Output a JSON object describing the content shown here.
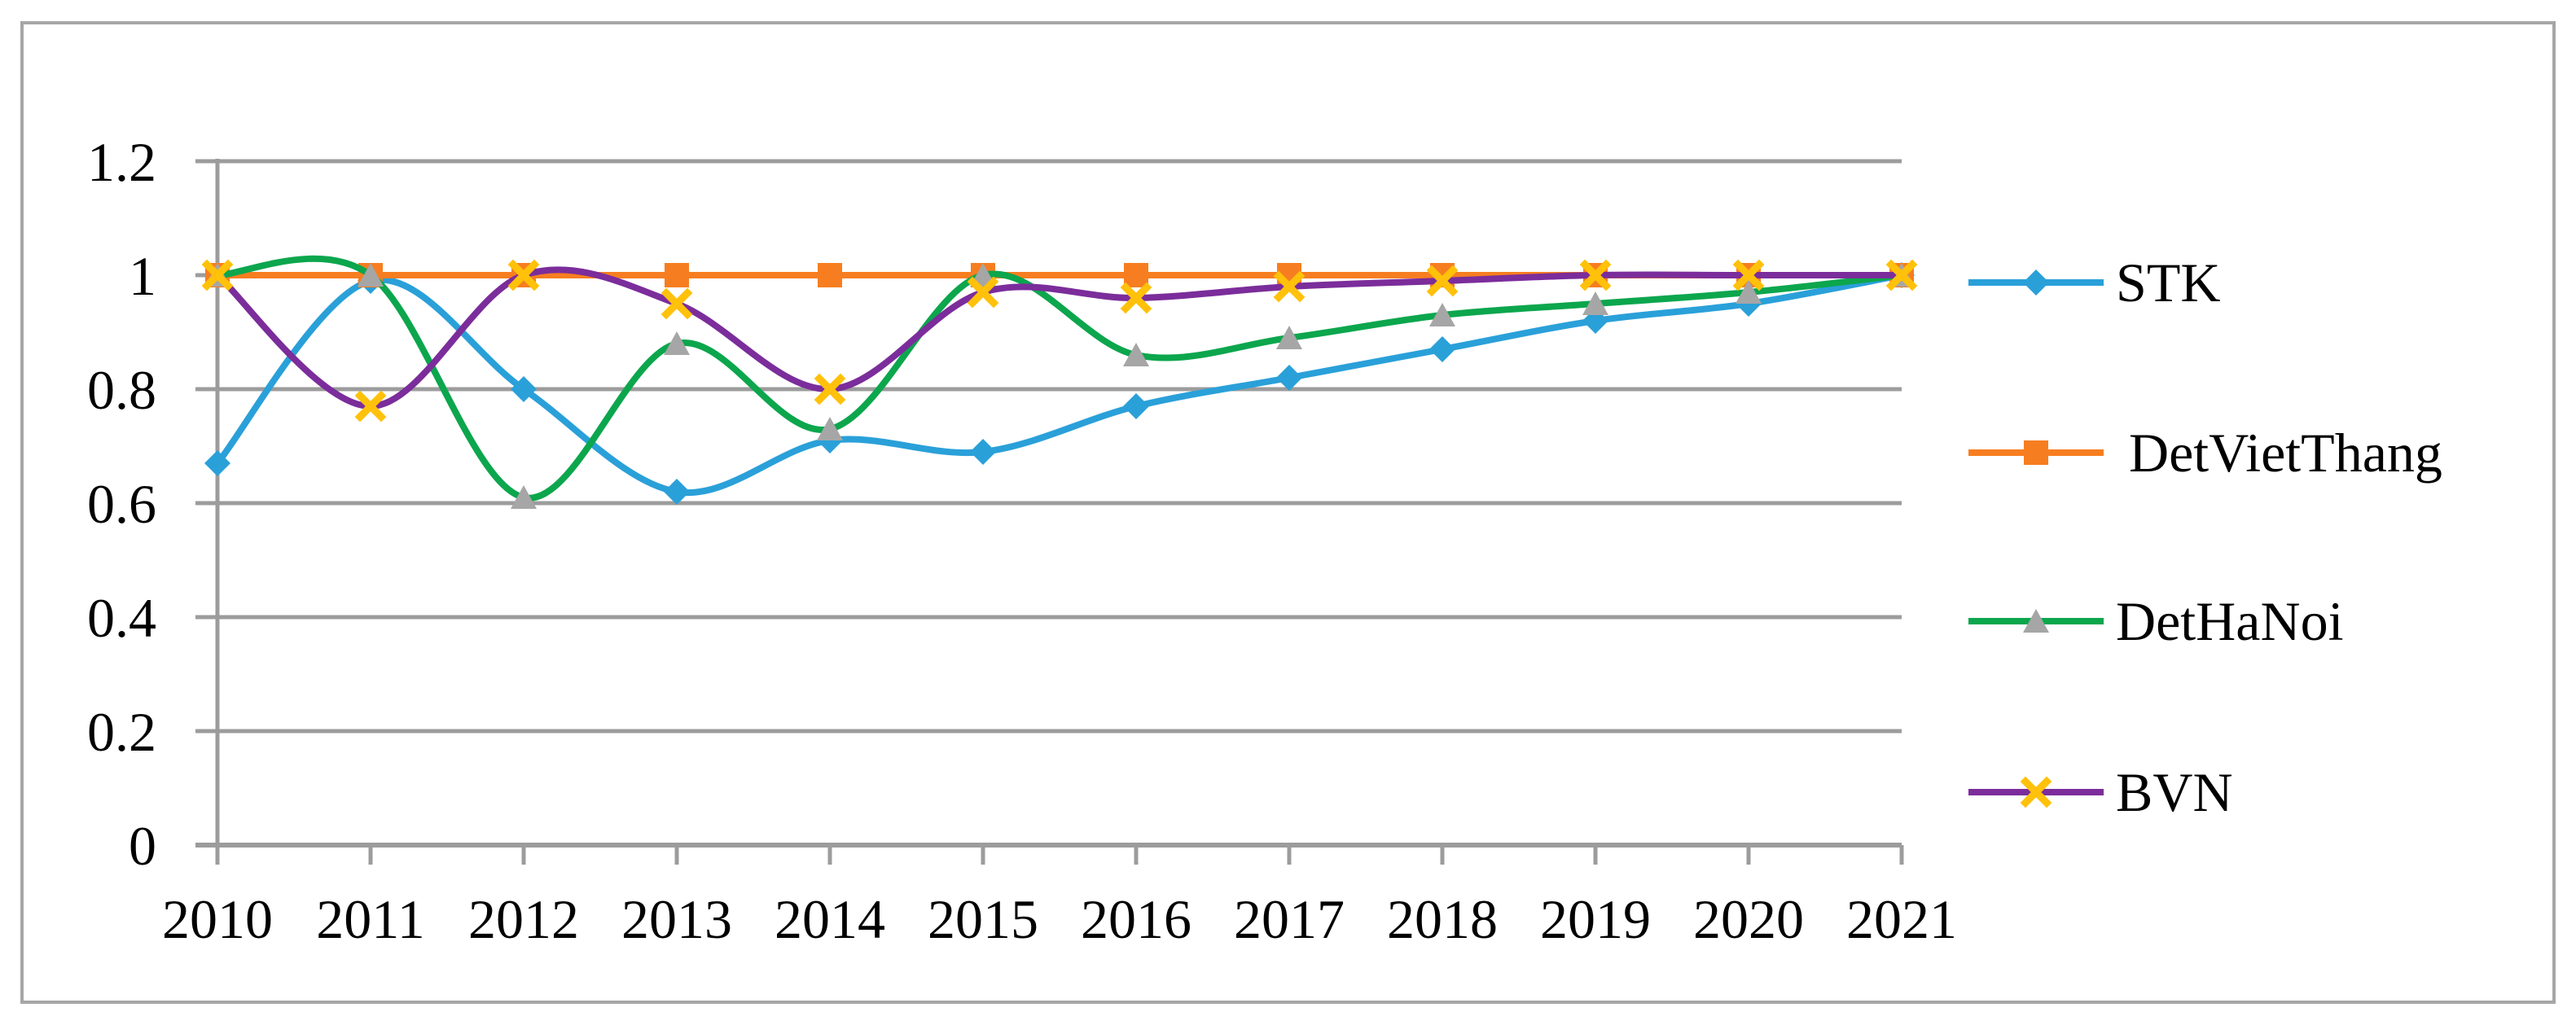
{
  "figure": {
    "background": "#FFFFFF",
    "border_color": "#A6A6A6"
  },
  "axes": {
    "grid_color": "#9C9C9C",
    "axis_color": "#909090",
    "label_color": "#000000",
    "y_ticks": [
      "1.2",
      "1",
      "0.8",
      "0.6",
      "0.4",
      "0.2",
      "0"
    ],
    "y_values": [
      1.2,
      1.0,
      0.8,
      0.6,
      0.4,
      0.2,
      0
    ],
    "x_ticks": [
      "2010",
      "2011",
      "2012",
      "2013",
      "2014",
      "2015",
      "2016",
      "2017",
      "2018",
      "2019",
      "2020",
      "2021"
    ]
  },
  "legend": {
    "items": [
      {
        "label": "STK",
        "line_color": "#2AA0D9",
        "marker": "diamond",
        "marker_color": "#2AA0D9"
      },
      {
        "label": "DetVietThang",
        "line_color": "#F77E20",
        "marker": "square",
        "marker_color": "#F77E20"
      },
      {
        "label": "DetHaNoi",
        "line_color": "#0CA64D",
        "marker": "triangle",
        "marker_color": "#A6A6A6"
      },
      {
        "label": "BVN",
        "line_color": "#7B2D9B",
        "marker": "x",
        "marker_color": "#FFC10A"
      }
    ]
  },
  "chart_data": {
    "type": "line",
    "smooth": true,
    "grid": "horizontal",
    "legend_position": "right",
    "x": [
      2010,
      2011,
      2012,
      2013,
      2014,
      2015,
      2016,
      2017,
      2018,
      2019,
      2020,
      2021
    ],
    "ylim": [
      0,
      1.2
    ],
    "series": [
      {
        "name": "STK",
        "color": "#2AA0D9",
        "marker": "diamond",
        "marker_color": "#2AA0D9",
        "values": [
          0.67,
          0.99,
          0.8,
          0.62,
          0.71,
          0.69,
          0.77,
          0.82,
          0.87,
          0.92,
          0.95,
          1.0
        ]
      },
      {
        "name": "DetVietThang",
        "color": "#F77E20",
        "marker": "square",
        "marker_color": "#F77E20",
        "values": [
          1.0,
          1.0,
          1.0,
          1.0,
          1.0,
          1.0,
          1.0,
          1.0,
          1.0,
          1.0,
          1.0,
          1.0
        ]
      },
      {
        "name": "DetHaNoi",
        "color": "#0CA64D",
        "marker": "triangle",
        "marker_color": "#A6A6A6",
        "values": [
          1.0,
          1.0,
          0.61,
          0.88,
          0.73,
          1.0,
          0.86,
          0.89,
          0.93,
          0.95,
          0.97,
          1.0
        ]
      },
      {
        "name": "BVN",
        "color": "#7B2D9B",
        "marker": "x",
        "marker_color": "#FFC10A",
        "values": [
          1.0,
          0.77,
          1.0,
          0.95,
          0.8,
          0.97,
          0.96,
          0.98,
          0.99,
          1.0,
          1.0,
          1.0
        ]
      }
    ]
  }
}
